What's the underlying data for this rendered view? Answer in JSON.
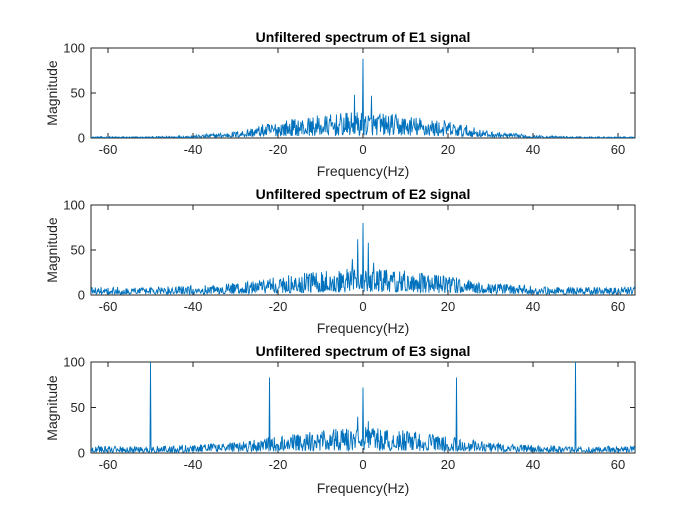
{
  "colors": {
    "line": "#0072BD",
    "axis": "#262626",
    "background": "#ffffff"
  },
  "chart_data": [
    {
      "type": "line",
      "title": "Unfiltered spectrum of E1 signal",
      "xlabel": "Frequency(Hz)",
      "ylabel": "Magnitude",
      "xlim": [
        -64,
        64
      ],
      "ylim": [
        0,
        100
      ],
      "xticks": [
        -60,
        -40,
        -20,
        0,
        20,
        40,
        60
      ],
      "yticks": [
        0,
        50,
        100
      ],
      "grid": false,
      "series": [
        {
          "peaks": [
            {
              "x": 0,
              "y": 88
            },
            {
              "x": -2,
              "y": 48
            },
            {
              "x": 2,
              "y": 47
            },
            {
              "x": -4,
              "y": 28
            },
            {
              "x": 4,
              "y": 26
            }
          ],
          "noise_profile": [
            {
              "x": -64,
              "y": 1
            },
            {
              "x": -50,
              "y": 1
            },
            {
              "x": -40,
              "y": 2
            },
            {
              "x": -30,
              "y": 5
            },
            {
              "x": -20,
              "y": 13
            },
            {
              "x": -10,
              "y": 17
            },
            {
              "x": 0,
              "y": 20
            },
            {
              "x": 10,
              "y": 17
            },
            {
              "x": 20,
              "y": 13
            },
            {
              "x": 30,
              "y": 5
            },
            {
              "x": 40,
              "y": 2
            },
            {
              "x": 50,
              "y": 1
            },
            {
              "x": 64,
              "y": 1
            }
          ]
        }
      ]
    },
    {
      "type": "line",
      "title": "Unfiltered spectrum of E2 signal",
      "xlabel": "Frequency(Hz)",
      "ylabel": "Magnitude",
      "xlim": [
        -64,
        64
      ],
      "ylim": [
        0,
        100
      ],
      "xticks": [
        -60,
        -40,
        -20,
        0,
        20,
        40,
        60
      ],
      "yticks": [
        0,
        50,
        100
      ],
      "grid": false,
      "series": [
        {
          "peaks": [
            {
              "x": 0,
              "y": 80
            },
            {
              "x": -1.2,
              "y": 62
            },
            {
              "x": 1.2,
              "y": 58
            },
            {
              "x": -2.5,
              "y": 40
            },
            {
              "x": 2.5,
              "y": 36
            }
          ],
          "noise_profile": [
            {
              "x": -64,
              "y": 6
            },
            {
              "x": -50,
              "y": 6
            },
            {
              "x": -40,
              "y": 7
            },
            {
              "x": -30,
              "y": 9
            },
            {
              "x": -20,
              "y": 14
            },
            {
              "x": -10,
              "y": 18
            },
            {
              "x": 0,
              "y": 20
            },
            {
              "x": 10,
              "y": 18
            },
            {
              "x": 20,
              "y": 14
            },
            {
              "x": 30,
              "y": 9
            },
            {
              "x": 40,
              "y": 7
            },
            {
              "x": 50,
              "y": 6
            },
            {
              "x": 64,
              "y": 6
            }
          ]
        }
      ]
    },
    {
      "type": "line",
      "title": "Unfiltered spectrum of E3 signal",
      "xlabel": "Frequency(Hz)",
      "ylabel": "Magnitude",
      "xlim": [
        -64,
        64
      ],
      "ylim": [
        0,
        100
      ],
      "xticks": [
        -60,
        -40,
        -20,
        0,
        20,
        40,
        60
      ],
      "yticks": [
        0,
        50,
        100
      ],
      "grid": false,
      "series": [
        {
          "peaks": [
            {
              "x": -50,
              "y": 100
            },
            {
              "x": 50,
              "y": 100
            },
            {
              "x": -22,
              "y": 83
            },
            {
              "x": 22,
              "y": 83
            },
            {
              "x": 0,
              "y": 72
            },
            {
              "x": -1.2,
              "y": 40
            },
            {
              "x": 1.2,
              "y": 35
            }
          ],
          "noise_profile": [
            {
              "x": -64,
              "y": 5
            },
            {
              "x": -50,
              "y": 5
            },
            {
              "x": -40,
              "y": 6
            },
            {
              "x": -30,
              "y": 8
            },
            {
              "x": -20,
              "y": 12
            },
            {
              "x": -10,
              "y": 17
            },
            {
              "x": 0,
              "y": 19
            },
            {
              "x": 10,
              "y": 17
            },
            {
              "x": 20,
              "y": 12
            },
            {
              "x": 30,
              "y": 8
            },
            {
              "x": 40,
              "y": 6
            },
            {
              "x": 50,
              "y": 5
            },
            {
              "x": 64,
              "y": 5
            }
          ]
        }
      ]
    }
  ]
}
